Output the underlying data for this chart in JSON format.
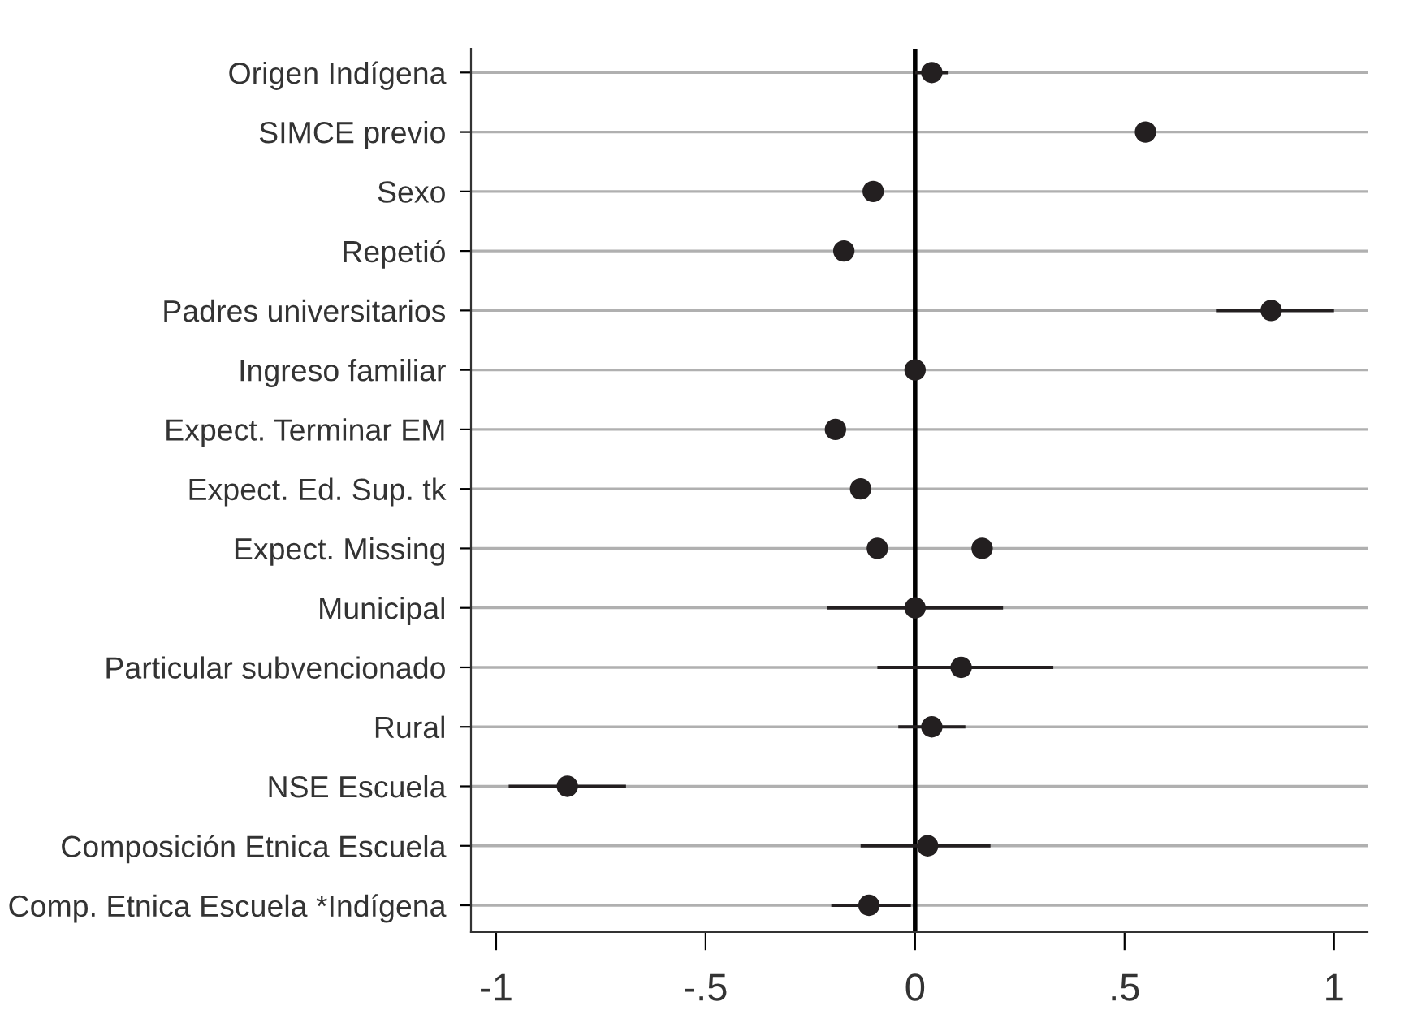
{
  "chart_data": {
    "type": "scatter",
    "categories": [
      "Origen Indígena",
      "SIMCE previo",
      "Sexo",
      "Repetió",
      "Padres universitarios",
      "Ingreso familiar",
      "Expect. Terminar EM",
      "Expect. Ed. Sup. tk",
      "Expect. Missing",
      "Municipal",
      "Particular subvencionado",
      "Rural",
      "NSE Escuela",
      "Composición Etnica Escuela",
      "Comp. Etnica Escuela *Indígena"
    ],
    "orientation": "horizontal",
    "series": [
      {
        "color": "#231f20",
        "values": [
          0.04,
          0.55,
          -0.1,
          -0.17,
          0.85,
          0,
          -0.19,
          -0.13,
          -0.09,
          0,
          0.11,
          0.04,
          -0.83,
          0.03,
          -0.11
        ],
        "errors": [
          [
            0.0,
            0.08
          ],
          null,
          null,
          null,
          [
            0.72,
            1.0
          ],
          null,
          null,
          null,
          null,
          [
            -0.21,
            0.21
          ],
          [
            -0.09,
            0.33
          ],
          [
            -0.04,
            0.12
          ],
          [
            -0.97,
            -0.69
          ],
          [
            -0.13,
            0.18
          ],
          [
            -0.2,
            -0.01
          ]
        ]
      },
      {
        "color": "#231f20",
        "values": [
          null,
          null,
          null,
          null,
          null,
          null,
          null,
          null,
          0.16,
          null,
          null,
          null,
          null,
          null,
          null
        ]
      }
    ],
    "xlim": [
      -1.06,
      1.08
    ],
    "xticks": [
      {
        "value": -1,
        "label": "-1"
      },
      {
        "value": -0.5,
        "label": "-.5"
      },
      0,
      {
        "value": 0.5,
        "label": ".5"
      },
      1
    ],
    "ref_lines": [
      {
        "axis": "x",
        "value": 0,
        "color": "#000000"
      }
    ],
    "grid": "y",
    "marker": "circle"
  }
}
